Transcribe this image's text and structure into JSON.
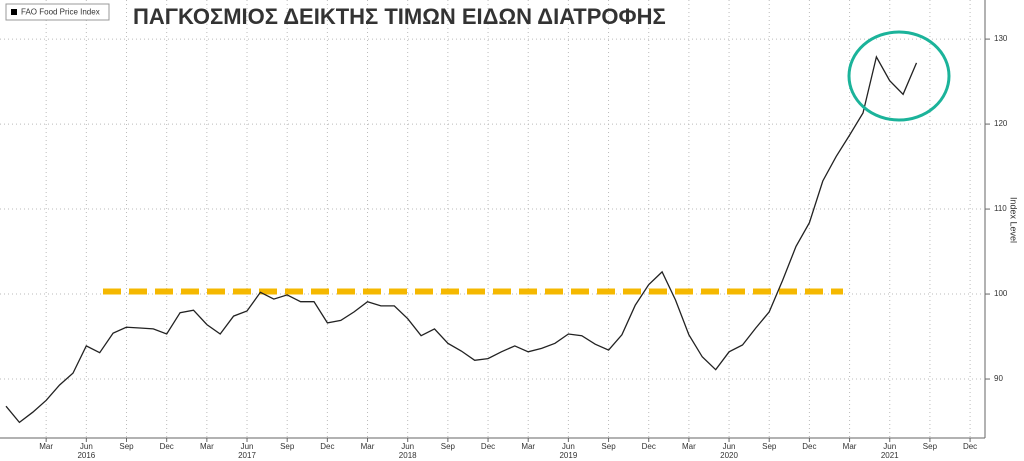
{
  "chart_data": {
    "type": "line",
    "title": "ΠΑΓΚΟΣΜΙΟΣ ΔΕΙΚΤΗΣ ΤΙΜΩΝ ΕΙΔΩΝ ΔΙΑΤΡΟΦΗΣ",
    "y_label": "Index Level",
    "categories": [
      null,
      null,
      null,
      "Mar",
      null,
      null,
      "Jun",
      null,
      null,
      "Sep",
      null,
      null,
      "Dec",
      null,
      null,
      "Mar",
      null,
      null,
      "Jun",
      null,
      null,
      "Sep",
      null,
      null,
      "Dec",
      null,
      null,
      "Mar",
      null,
      null,
      "Jun",
      null,
      null,
      "Sep",
      null,
      null,
      "Dec",
      null,
      null,
      "Mar",
      null,
      null,
      "Jun",
      null,
      null,
      "Sep",
      null,
      null,
      "Dec",
      null,
      null,
      "Mar",
      null,
      null,
      "Jun",
      null,
      null,
      "Sep",
      null,
      null,
      "Dec",
      null,
      null,
      "Mar",
      null,
      null,
      "Jun",
      null,
      null,
      "Sep",
      null,
      null,
      "Dec"
    ],
    "years": [
      "2016",
      "2017",
      "2018",
      "2019",
      "2020",
      "2021"
    ],
    "series": [
      {
        "name": "FAO Food Price Index",
        "color": "#222222",
        "values": [
          86.8,
          84.9,
          86.1,
          87.5,
          89.3,
          90.7,
          93.9,
          93.1,
          95.4,
          96.1,
          96.0,
          95.9,
          95.3,
          97.8,
          98.1,
          96.4,
          95.3,
          97.4,
          98.0,
          100.2,
          99.4,
          99.9,
          99.1,
          99.1,
          96.6,
          96.9,
          97.9,
          99.1,
          98.6,
          98.6,
          97.1,
          95.1,
          95.9,
          94.2,
          93.3,
          92.2,
          92.4,
          93.2,
          93.9,
          93.2,
          93.6,
          94.2,
          95.3,
          95.1,
          94.1,
          93.4,
          95.2,
          98.7,
          101.1,
          102.6,
          99.3,
          95.2,
          92.6,
          91.1,
          93.2,
          94.0,
          96.0,
          97.9,
          101.6,
          105.6,
          108.4,
          113.3,
          116.2,
          118.7,
          121.3,
          127.9,
          125.1,
          123.5,
          127.2,
          null,
          null,
          null,
          null
        ]
      }
    ],
    "reference_line": {
      "value": 100.3,
      "color": "#f5b800"
    },
    "ylim": [
      83.06,
      134.6
    ],
    "yticks": [
      90,
      100,
      110,
      120,
      130
    ],
    "grid": true
  }
}
